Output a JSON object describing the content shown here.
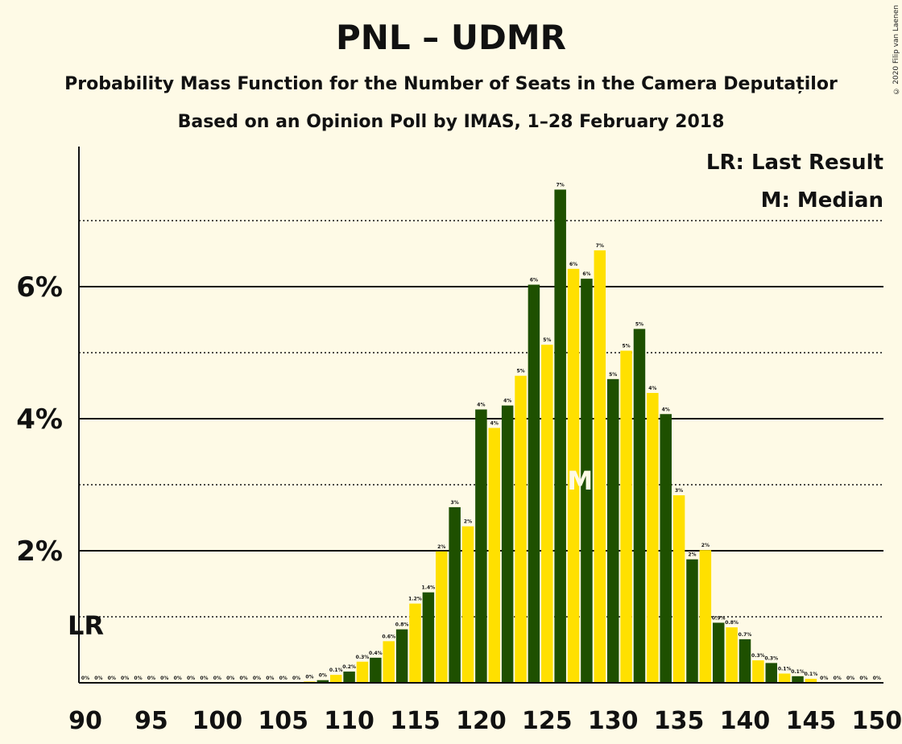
{
  "title": "PNL – UDMR",
  "subtitle": "Probability Mass Function for the Number of Seats in the Camera Deputaților",
  "subtitle2": "Based on an Opinion Poll by IMAS, 1–28 February 2018",
  "copyright": "© 2020 Filip van Laenen",
  "legend": {
    "last_result": "LR: Last Result",
    "median": "M: Median"
  },
  "markers": {
    "lr_label": "LR",
    "lr_seat": 90,
    "median_label": "M",
    "median_seat": 127
  },
  "colors": {
    "dark": "#1e5000",
    "yellow": "#ffe000",
    "background": "#fefae6"
  },
  "chart_data": {
    "type": "bar",
    "x": [
      90,
      91,
      92,
      93,
      94,
      95,
      96,
      97,
      98,
      99,
      100,
      101,
      102,
      103,
      104,
      105,
      106,
      107,
      108,
      109,
      110,
      111,
      112,
      113,
      114,
      115,
      116,
      117,
      118,
      119,
      120,
      121,
      122,
      123,
      124,
      125,
      126,
      127,
      128,
      129,
      130,
      131,
      132,
      133,
      134,
      135,
      136,
      137,
      138,
      139,
      140,
      141,
      142,
      143,
      144,
      145,
      146,
      147,
      148,
      149,
      150
    ],
    "values": [
      0,
      0,
      0,
      0,
      0,
      0,
      0,
      0,
      0,
      0,
      0,
      0,
      0,
      0,
      0,
      0,
      0,
      0.02,
      0.04,
      0.12,
      0.17,
      0.32,
      0.38,
      0.63,
      0.81,
      1.2,
      1.37,
      1.99,
      2.66,
      2.37,
      4.14,
      3.86,
      4.2,
      4.65,
      6.03,
      5.12,
      7.47,
      6.27,
      6.12,
      6.55,
      4.6,
      5.03,
      5.36,
      4.39,
      4.07,
      2.84,
      1.87,
      2.01,
      0.91,
      0.84,
      0.66,
      0.34,
      0.3,
      0.14,
      0.1,
      0.06,
      0,
      0,
      0,
      0,
      0
    ],
    "data_labels": [
      "0%",
      "0%",
      "0%",
      "0%",
      "0%",
      "0%",
      "0%",
      "0%",
      "0%",
      "0%",
      "0%",
      "0%",
      "0%",
      "0%",
      "0%",
      "0%",
      "0%",
      "0%",
      "0%",
      "0.1%",
      "0.2%",
      "0.3%",
      "0.4%",
      "0.6%",
      "0.8%",
      "1.2%",
      "1.4%",
      "2%",
      "3%",
      "2%",
      "4%",
      "4%",
      "4%",
      "5%",
      "6%",
      "5%",
      "7%",
      "6%",
      "6%",
      "7%",
      "5%",
      "5%",
      "5%",
      "4%",
      "4%",
      "3%",
      "2%",
      "2%",
      "0.9%",
      "0.8%",
      "0.7%",
      "0.3%",
      "0.3%",
      "0.1%",
      "0.1%",
      "0.1%",
      "0%",
      "0%",
      "0%",
      "0%",
      "0%"
    ],
    "x_ticks": [
      90,
      95,
      100,
      105,
      110,
      115,
      120,
      125,
      130,
      135,
      140,
      145,
      150
    ],
    "y_ticks": [
      {
        "value": 2,
        "label": "2%"
      },
      {
        "value": 4,
        "label": "4%"
      },
      {
        "value": 6,
        "label": "6%"
      }
    ],
    "ylim": [
      0,
      8
    ],
    "grid": {
      "solid": [
        2,
        4,
        6
      ],
      "dotted": [
        1,
        3,
        5,
        7
      ]
    }
  }
}
